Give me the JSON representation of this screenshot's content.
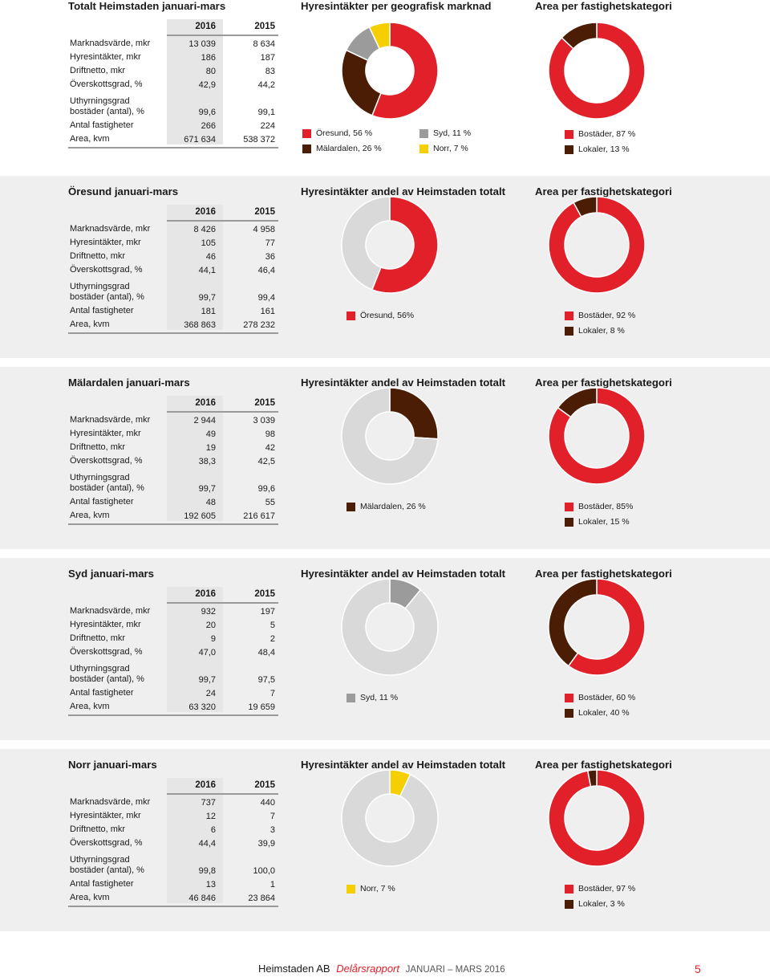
{
  "colors": {
    "red": "#e2202a",
    "brown": "#4a1d04",
    "gray": "#9b9b9b",
    "yellow": "#f5cf00",
    "lightgray": "#d9d9d9"
  },
  "sections": [
    {
      "title": "Totalt Heimstaden januari-mars",
      "chart1_title": "Hyresintäkter per geografisk marknad",
      "chart2_title": "Area per fastighetskategori",
      "years": [
        "2016",
        "2015"
      ],
      "rows": [
        {
          "label": "Marknadsvärde, mkr",
          "v2016": "13 039",
          "v2015": "8 634"
        },
        {
          "label": "Hyresintäkter, mkr",
          "v2016": "186",
          "v2015": "187"
        },
        {
          "label": "Driftnetto, mkr",
          "v2016": "80",
          "v2015": "83"
        },
        {
          "label": "Överskottsgrad, %",
          "v2016": "42,9",
          "v2015": "44,2"
        },
        {
          "label": "Uthyrningsgrad",
          "label2": "bostäder (antal), %",
          "v2016": "99,6",
          "v2015": "99,1"
        },
        {
          "label": "Antal fastigheter",
          "v2016": "266",
          "v2015": "224"
        },
        {
          "label": "Area, kvm",
          "v2016": "671 634",
          "v2015": "538 372"
        }
      ],
      "chart1_segments": [
        {
          "label": "Öresund, 56 %",
          "value": 56,
          "color": "red"
        },
        {
          "label": "Mälardalen, 26 %",
          "value": 26,
          "color": "brown"
        },
        {
          "label": "Syd, 11 %",
          "value": 11,
          "color": "gray"
        },
        {
          "label": "Norr, 7 %",
          "value": 7,
          "color": "yellow"
        }
      ],
      "chart2_segments": [
        {
          "label": "Bostäder, 87 %",
          "value": 87,
          "color": "red"
        },
        {
          "label": "Lokaler, 13 %",
          "value": 13,
          "color": "brown"
        }
      ]
    },
    {
      "title": "Öresund januari-mars",
      "chart1_title": "Hyresintäkter andel av Heimstaden totalt",
      "chart2_title": "Area per fastighetskategori",
      "years": [
        "2016",
        "2015"
      ],
      "rows": [
        {
          "label": "Marknadsvärde, mkr",
          "v2016": "8 426",
          "v2015": "4 958"
        },
        {
          "label": "Hyresintäkter, mkr",
          "v2016": "105",
          "v2015": "77"
        },
        {
          "label": "Driftnetto, mkr",
          "v2016": "46",
          "v2015": "36"
        },
        {
          "label": "Överskottsgrad, %",
          "v2016": "44,1",
          "v2015": "46,4"
        },
        {
          "label": "Uthyrningsgrad",
          "label2": "bostäder (antal), %",
          "v2016": "99,7",
          "v2015": "99,4"
        },
        {
          "label": "Antal fastigheter",
          "v2016": "181",
          "v2015": "161"
        },
        {
          "label": "Area, kvm",
          "v2016": "368 863",
          "v2015": "278 232"
        }
      ],
      "chart1_segments": [
        {
          "label": "Öresund, 56%",
          "value": 56,
          "color": "red"
        },
        {
          "label": "",
          "value": 44,
          "color": "lightgray"
        }
      ],
      "chart2_segments": [
        {
          "label": "Bostäder, 92 %",
          "value": 92,
          "color": "red"
        },
        {
          "label": "Lokaler, 8 %",
          "value": 8,
          "color": "brown"
        }
      ]
    },
    {
      "title": "Mälardalen januari-mars",
      "chart1_title": "Hyresintäkter andel av Heimstaden totalt",
      "chart2_title": "Area per fastighetskategori",
      "years": [
        "2016",
        "2015"
      ],
      "rows": [
        {
          "label": "Marknadsvärde, mkr",
          "v2016": "2 944",
          "v2015": "3 039"
        },
        {
          "label": "Hyresintäkter, mkr",
          "v2016": "49",
          "v2015": "98"
        },
        {
          "label": "Driftnetto, mkr",
          "v2016": "19",
          "v2015": "42"
        },
        {
          "label": "Överskottsgrad, %",
          "v2016": "38,3",
          "v2015": "42,5"
        },
        {
          "label": "Uthyrningsgrad",
          "label2": "bostäder (antal), %",
          "v2016": "99,7",
          "v2015": "99,6"
        },
        {
          "label": "Antal fastigheter",
          "v2016": "48",
          "v2015": "55"
        },
        {
          "label": "Area, kvm",
          "v2016": "192 605",
          "v2015": "216 617"
        }
      ],
      "chart1_segments": [
        {
          "label": "Mälardalen, 26 %",
          "value": 26,
          "color": "brown"
        },
        {
          "label": "",
          "value": 74,
          "color": "lightgray"
        }
      ],
      "chart2_segments": [
        {
          "label": "Bostäder, 85%",
          "value": 85,
          "color": "red"
        },
        {
          "label": "Lokaler, 15 %",
          "value": 15,
          "color": "brown"
        }
      ]
    },
    {
      "title": "Syd januari-mars",
      "chart1_title": "Hyresintäkter andel av Heimstaden totalt",
      "chart2_title": "Area per fastighetskategori",
      "years": [
        "2016",
        "2015"
      ],
      "rows": [
        {
          "label": "Marknadsvärde, mkr",
          "v2016": "932",
          "v2015": "197"
        },
        {
          "label": "Hyresintäkter, mkr",
          "v2016": "20",
          "v2015": "5"
        },
        {
          "label": "Driftnetto, mkr",
          "v2016": "9",
          "v2015": "2"
        },
        {
          "label": "Överskottsgrad, %",
          "v2016": "47,0",
          "v2015": "48,4"
        },
        {
          "label": "Uthyrningsgrad",
          "label2": "bostäder (antal), %",
          "v2016": "99,7",
          "v2015": "97,5"
        },
        {
          "label": "Antal fastigheter",
          "v2016": "24",
          "v2015": "7"
        },
        {
          "label": "Area, kvm",
          "v2016": "63 320",
          "v2015": "19 659"
        }
      ],
      "chart1_segments": [
        {
          "label": "Syd, 11 %",
          "value": 11,
          "color": "gray"
        },
        {
          "label": "",
          "value": 89,
          "color": "lightgray"
        }
      ],
      "chart2_segments": [
        {
          "label": "Bostäder, 60 %",
          "value": 60,
          "color": "red"
        },
        {
          "label": "Lokaler, 40 %",
          "value": 40,
          "color": "brown"
        }
      ]
    },
    {
      "title": "Norr januari-mars",
      "chart1_title": "Hyresintäkter andel av Heimstaden totalt",
      "chart2_title": "Area per fastighetskategori",
      "years": [
        "2016",
        "2015"
      ],
      "rows": [
        {
          "label": "Marknadsvärde, mkr",
          "v2016": "737",
          "v2015": "440"
        },
        {
          "label": "Hyresintäkter, mkr",
          "v2016": "12",
          "v2015": "7"
        },
        {
          "label": "Driftnetto, mkr",
          "v2016": "6",
          "v2015": "3"
        },
        {
          "label": "Överskottsgrad, %",
          "v2016": "44,4",
          "v2015": "39,9"
        },
        {
          "label": "Uthyrningsgrad",
          "label2": "bostäder (antal), %",
          "v2016": "99,8",
          "v2015": "100,0"
        },
        {
          "label": "Antal fastigheter",
          "v2016": "13",
          "v2015": "1"
        },
        {
          "label": "Area, kvm",
          "v2016": "46 846",
          "v2015": "23 864"
        }
      ],
      "chart1_segments": [
        {
          "label": "Norr, 7 %",
          "value": 7,
          "color": "yellow"
        },
        {
          "label": "",
          "value": 93,
          "color": "lightgray"
        }
      ],
      "chart2_segments": [
        {
          "label": "Bostäder, 97 %",
          "value": 97,
          "color": "red"
        },
        {
          "label": "Lokaler, 3 %",
          "value": 3,
          "color": "brown"
        }
      ]
    }
  ],
  "footer": {
    "company": "Heimstaden AB",
    "report": "Delårsrapport",
    "period": "JANUARI – MARS 2016",
    "page": "5"
  }
}
